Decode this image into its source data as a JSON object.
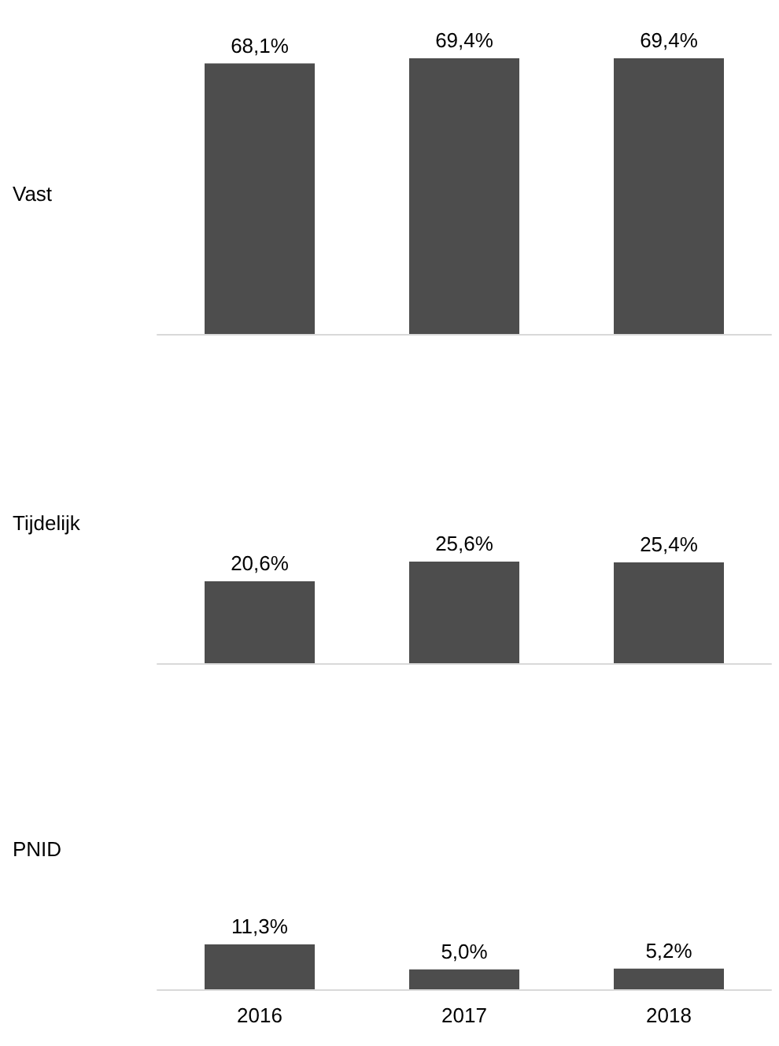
{
  "chart_data": [
    {
      "type": "bar",
      "ylabel": "Vast",
      "categories": [
        "2016",
        "2017",
        "2018"
      ],
      "values": [
        68.1,
        69.4,
        69.4
      ],
      "value_labels": [
        "68,1%",
        "69,4%",
        "69,4%"
      ],
      "color": "#4d4d4d",
      "tick_labels": false
    },
    {
      "type": "bar",
      "ylabel": "Tijdelijk",
      "categories": [
        "2016",
        "2017",
        "2018"
      ],
      "values": [
        20.6,
        25.6,
        25.4
      ],
      "value_labels": [
        "20,6%",
        "25,6%",
        "25,4%"
      ],
      "color": "#4d4d4d",
      "tick_labels": false
    },
    {
      "type": "bar",
      "ylabel": "PNID",
      "categories": [
        "2016",
        "2017",
        "2018"
      ],
      "values": [
        11.3,
        5.0,
        5.2
      ],
      "value_labels": [
        "11,3%",
        "5,0%",
        "5,2%"
      ],
      "color": "#4d4d4d",
      "tick_labels": "x"
    }
  ]
}
